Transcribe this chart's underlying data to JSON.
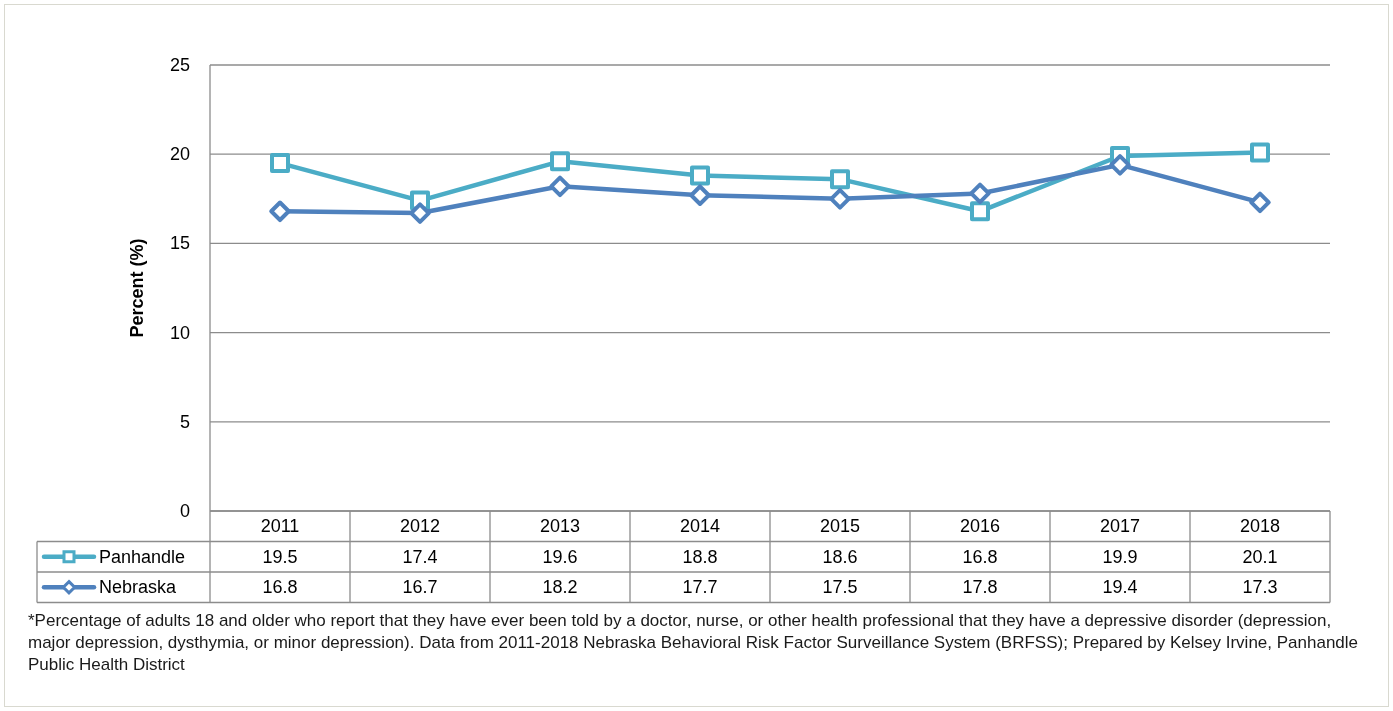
{
  "chart_data": {
    "type": "line",
    "categories": [
      "2011",
      "2012",
      "2013",
      "2014",
      "2015",
      "2016",
      "2017",
      "2018"
    ],
    "series": [
      {
        "name": "Panhandle",
        "color": "#4bacc6",
        "marker": "square",
        "values": [
          19.5,
          17.4,
          19.6,
          18.8,
          18.6,
          16.8,
          19.9,
          20.1
        ]
      },
      {
        "name": "Nebraska",
        "color": "#4f81bd",
        "marker": "diamond",
        "values": [
          16.8,
          16.7,
          18.2,
          17.7,
          17.5,
          17.8,
          19.4,
          17.3
        ]
      }
    ],
    "ylabel": "Percent (%)",
    "ylim": [
      0,
      25
    ],
    "yticks": [
      0,
      5,
      10,
      15,
      20,
      25
    ],
    "grid": "y",
    "legend": "bottom left",
    "data_labels": true,
    "annotations": [
      "*Percentage of adults 18 and older who report that they have ever been told by a doctor, nurse, or other health professional that they have a depressive disorder (depression, major depression, dysthymia, or minor depression). Data from 2011-2018 Nebraska Behavioral Risk Factor Surveillance System (BRFSS); Prepared by Kelsey Irvine, Panhandle Public Health District"
    ]
  }
}
